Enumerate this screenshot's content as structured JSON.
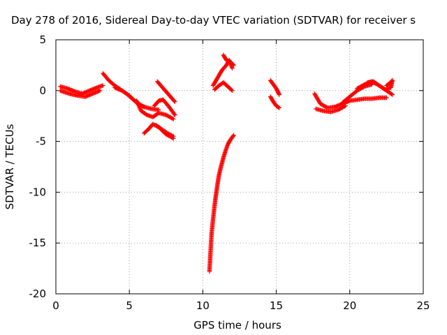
{
  "chart_data": {
    "type": "scatter",
    "title": "Day 278 of 2016, Sidereal Day-to-day VTEC variation (SDTVAR) for receiver s",
    "xlabel": "GPS time / hours",
    "ylabel": "SDTVAR / TECUs",
    "xlim": [
      0,
      25
    ],
    "ylim": [
      -20,
      5
    ],
    "xticks": [
      0,
      5,
      10,
      15,
      20,
      25
    ],
    "yticks": [
      -20,
      -15,
      -10,
      -5,
      0,
      5
    ],
    "grid": true,
    "marker": "plus",
    "color": "#ff0000",
    "segments": [
      {
        "x": [
          0.3,
          0.8,
          1.3,
          1.8,
          2.3,
          2.8,
          3.2
        ],
        "y": [
          0.4,
          0.2,
          -0.1,
          -0.3,
          0.0,
          0.3,
          0.5
        ]
      },
      {
        "x": [
          0.3,
          0.9,
          1.5,
          2.0,
          2.5,
          3.0
        ],
        "y": [
          0.0,
          -0.3,
          -0.5,
          -0.6,
          -0.3,
          0.0
        ]
      },
      {
        "x": [
          3.2,
          3.6,
          4.0,
          4.4,
          4.8,
          5.2,
          5.6,
          6.0
        ],
        "y": [
          1.7,
          1.0,
          0.5,
          0.1,
          -0.3,
          -0.8,
          -1.3,
          -1.6
        ]
      },
      {
        "x": [
          4.0,
          4.5,
          5.0,
          5.5,
          6.0,
          6.5,
          7.0
        ],
        "y": [
          0.3,
          0.0,
          -0.5,
          -1.2,
          -1.6,
          -1.8,
          -1.9
        ]
      },
      {
        "x": [
          5.5,
          5.8,
          6.2,
          6.6,
          7.0,
          7.5,
          8.0
        ],
        "y": [
          -1.0,
          -2.0,
          -2.4,
          -2.6,
          -2.2,
          -2.4,
          -2.8
        ]
      },
      {
        "x": [
          6.0,
          6.3,
          6.6,
          7.0,
          7.5,
          8.0
        ],
        "y": [
          -4.2,
          -3.8,
          -3.3,
          -3.6,
          -4.3,
          -4.7
        ]
      },
      {
        "x": [
          6.8,
          7.2,
          7.6,
          8.0
        ],
        "y": [
          -3.4,
          -3.8,
          -4.2,
          -4.5
        ]
      },
      {
        "x": [
          6.7,
          7.0,
          7.3,
          7.7,
          8.1
        ],
        "y": [
          -1.5,
          -1.0,
          -0.9,
          -1.6,
          -2.4
        ]
      },
      {
        "x": [
          6.9,
          8.1
        ],
        "y": [
          0.9,
          -1.1
        ]
      },
      {
        "x": [
          10.7,
          10.9,
          11.1,
          11.3,
          11.6,
          11.8,
          12.0
        ],
        "y": [
          0.5,
          1.0,
          1.5,
          2.0,
          2.5,
          3.0,
          2.2
        ]
      },
      {
        "x": [
          10.8,
          11.1,
          11.4,
          11.7,
          12.0
        ],
        "y": [
          0.1,
          0.5,
          0.8,
          0.4,
          0.0
        ]
      },
      {
        "x": [
          11.4,
          11.6,
          11.9,
          12.1
        ],
        "y": [
          3.5,
          3.0,
          2.8,
          2.5
        ]
      },
      {
        "x": [
          10.45,
          10.5,
          10.55,
          10.6,
          10.7,
          10.8,
          10.9,
          11.0,
          11.1,
          11.25,
          11.4,
          11.55,
          11.7,
          11.85,
          12.0,
          12.1
        ],
        "y": [
          -17.8,
          -16.5,
          -15.2,
          -14.0,
          -12.6,
          -11.3,
          -10.2,
          -9.2,
          -8.3,
          -7.4,
          -6.6,
          -5.9,
          -5.3,
          -4.9,
          -4.6,
          -4.4
        ]
      },
      {
        "x": [
          14.6,
          14.8,
          15.0,
          15.2
        ],
        "y": [
          1.0,
          0.6,
          0.2,
          -0.4
        ]
      },
      {
        "x": [
          14.6,
          14.8,
          15.0,
          15.2
        ],
        "y": [
          -0.6,
          -1.1,
          -1.5,
          -1.7
        ]
      },
      {
        "x": [
          17.6,
          18.0,
          18.5,
          19.0,
          19.5,
          20.0,
          20.5,
          21.0,
          21.5,
          22.0,
          22.5
        ],
        "y": [
          -0.3,
          -1.3,
          -1.7,
          -1.6,
          -1.3,
          -1.0,
          -0.9,
          -0.8,
          -0.8,
          -0.7,
          -0.7
        ]
      },
      {
        "x": [
          17.7,
          18.2,
          18.7,
          19.2,
          19.7
        ],
        "y": [
          -1.8,
          -2.0,
          -2.1,
          -1.9,
          -1.5
        ]
      },
      {
        "x": [
          20.5,
          21.0,
          21.5,
          22.0,
          22.5,
          22.9
        ],
        "y": [
          0.2,
          0.6,
          0.9,
          0.5,
          0.0,
          -0.4
        ]
      },
      {
        "x": [
          19.5,
          20.0,
          20.5,
          21.0,
          21.5
        ],
        "y": [
          -1.2,
          -0.6,
          0.0,
          0.4,
          0.6
        ]
      },
      {
        "x": [
          21.2,
          21.6,
          22.0,
          22.4,
          22.8,
          22.9
        ],
        "y": [
          0.8,
          0.9,
          0.5,
          0.1,
          0.3,
          1.0
        ]
      },
      {
        "x": [
          22.5,
          22.7,
          22.9
        ],
        "y": [
          0.5,
          0.7,
          1.0
        ]
      }
    ]
  }
}
